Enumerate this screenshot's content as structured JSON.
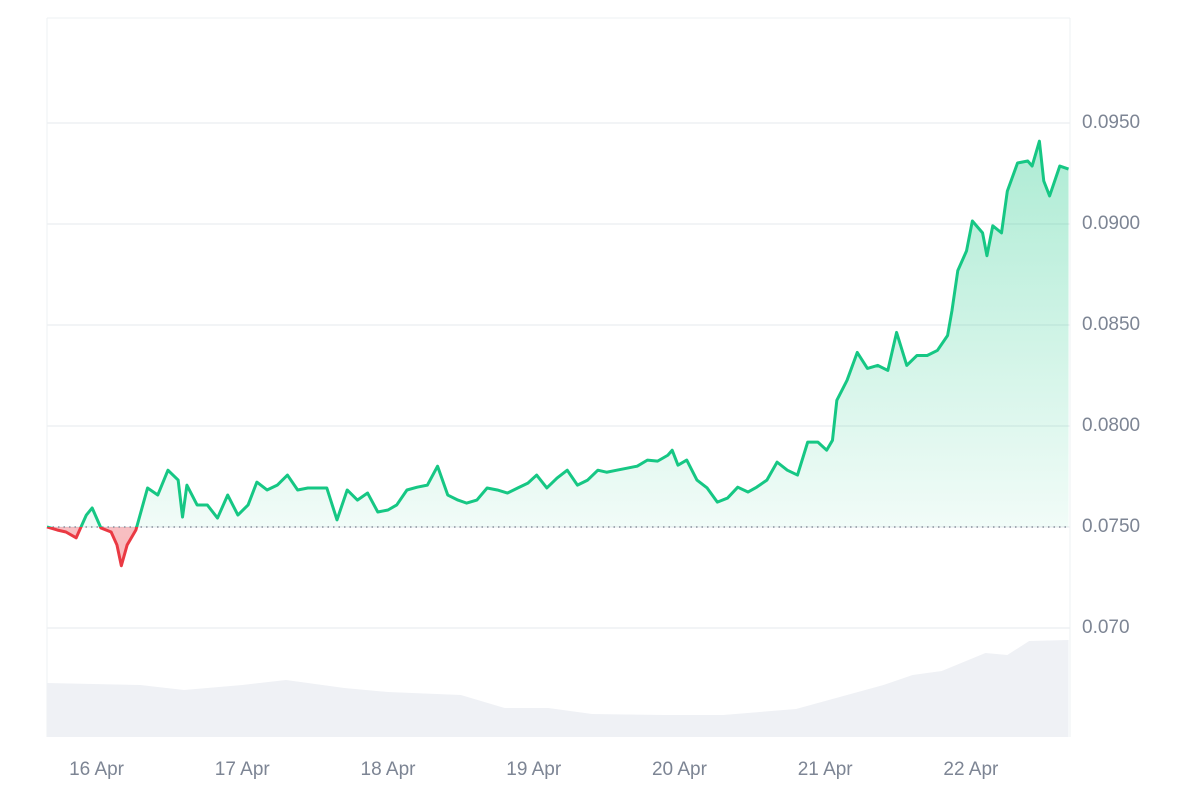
{
  "chart_data": {
    "type": "line",
    "x": [
      15.66,
      15.73,
      15.79,
      15.86,
      15.93,
      15.97,
      16.03,
      16.1,
      16.14,
      16.17,
      16.21,
      16.27,
      16.35,
      16.42,
      16.49,
      16.56,
      16.59,
      16.62,
      16.69,
      16.76,
      16.83,
      16.9,
      16.97,
      17.04,
      17.1,
      17.17,
      17.24,
      17.31,
      17.38,
      17.45,
      17.52,
      17.58,
      17.65,
      17.72,
      17.79,
      17.86,
      17.93,
      18.0,
      18.06,
      18.13,
      18.2,
      18.27,
      18.34,
      18.41,
      18.48,
      18.54,
      18.61,
      18.68,
      18.75,
      18.82,
      18.89,
      18.96,
      19.02,
      19.09,
      19.16,
      19.23,
      19.3,
      19.37,
      19.44,
      19.5,
      19.57,
      19.64,
      19.71,
      19.78,
      19.85,
      19.92,
      19.95,
      19.99,
      20.05,
      20.12,
      20.19,
      20.26,
      20.33,
      20.4,
      20.47,
      20.53,
      20.6,
      20.67,
      20.74,
      20.81,
      20.88,
      20.95,
      21.01,
      21.05,
      21.08,
      21.15,
      21.22,
      21.29,
      21.36,
      21.43,
      21.49,
      21.56,
      21.63,
      21.7,
      21.77,
      21.84,
      21.87,
      21.91,
      21.97,
      22.01,
      22.08,
      22.11,
      22.15,
      22.21,
      22.25,
      22.32,
      22.39,
      22.42,
      22.47,
      22.5,
      22.54,
      22.61,
      22.67
    ],
    "values": [
      0.075,
      0.07485,
      0.07475,
      0.07446,
      0.07559,
      0.07594,
      0.07495,
      0.07475,
      0.07411,
      0.07308,
      0.07411,
      0.07485,
      0.07693,
      0.07658,
      0.07781,
      0.07732,
      0.07549,
      0.07707,
      0.07609,
      0.07609,
      0.07544,
      0.07658,
      0.07559,
      0.07609,
      0.07722,
      0.07683,
      0.07707,
      0.07757,
      0.07683,
      0.07693,
      0.07693,
      0.07693,
      0.07535,
      0.07683,
      0.07633,
      0.07668,
      0.07574,
      0.07584,
      0.07609,
      0.07683,
      0.07697,
      0.07707,
      0.07801,
      0.07658,
      0.07633,
      0.07618,
      0.07633,
      0.07693,
      0.07683,
      0.07668,
      0.07693,
      0.07717,
      0.07757,
      0.07693,
      0.07742,
      0.07781,
      0.07707,
      0.07732,
      0.07781,
      0.07771,
      0.07781,
      0.07791,
      0.07801,
      0.07831,
      0.07826,
      0.07855,
      0.0788,
      0.07806,
      0.07831,
      0.07732,
      0.07693,
      0.07623,
      0.07643,
      0.07697,
      0.07673,
      0.07697,
      0.07732,
      0.07821,
      0.07781,
      0.07757,
      0.0792,
      0.0792,
      0.0788,
      0.07929,
      0.08127,
      0.08226,
      0.08364,
      0.08285,
      0.083,
      0.08275,
      0.08463,
      0.083,
      0.08349,
      0.08349,
      0.08374,
      0.08448,
      0.08571,
      0.08769,
      0.08867,
      0.09015,
      0.08956,
      0.08843,
      0.08991,
      0.08956,
      0.09163,
      0.09302,
      0.09312,
      0.09287,
      0.0941,
      0.09213,
      0.09139,
      0.09287,
      0.09272
    ],
    "baseline": 0.075,
    "color_up": "#16c784",
    "color_down": "#ea3943",
    "xlim": [
      15.66,
      22.68
    ],
    "xticks": [
      {
        "value": 16,
        "label": "16 Apr"
      },
      {
        "value": 17,
        "label": "17 Apr"
      },
      {
        "value": 18,
        "label": "18 Apr"
      },
      {
        "value": 19,
        "label": "19 Apr"
      },
      {
        "value": 20,
        "label": "20 Apr"
      },
      {
        "value": 21,
        "label": "21 Apr"
      },
      {
        "value": 22,
        "label": "22 Apr"
      }
    ],
    "ylim": [
      0.0646,
      0.1002
    ],
    "yticks": [
      {
        "value": 0.07,
        "label": "0.070"
      },
      {
        "value": 0.075,
        "label": "0.0750"
      },
      {
        "value": 0.08,
        "label": "0.0800"
      },
      {
        "value": 0.085,
        "label": "0.0850"
      },
      {
        "value": 0.09,
        "label": "0.0900"
      },
      {
        "value": 0.095,
        "label": "0.0950"
      }
    ],
    "grid": true,
    "volume": {
      "color": "#eff1f5",
      "vlim": [
        0,
        100
      ],
      "x": [
        15.66,
        16.3,
        16.6,
        17.0,
        17.3,
        17.7,
        18.0,
        18.5,
        18.8,
        19.1,
        19.4,
        19.9,
        20.3,
        20.8,
        21.1,
        21.4,
        21.6,
        21.8,
        21.9,
        22.1,
        22.25,
        22.4,
        22.67
      ],
      "values": [
        54,
        52,
        47,
        52,
        57,
        49,
        45,
        42,
        29,
        29,
        23,
        22,
        22,
        28,
        40,
        52,
        62,
        66,
        72,
        84,
        82,
        96,
        97
      ]
    }
  }
}
